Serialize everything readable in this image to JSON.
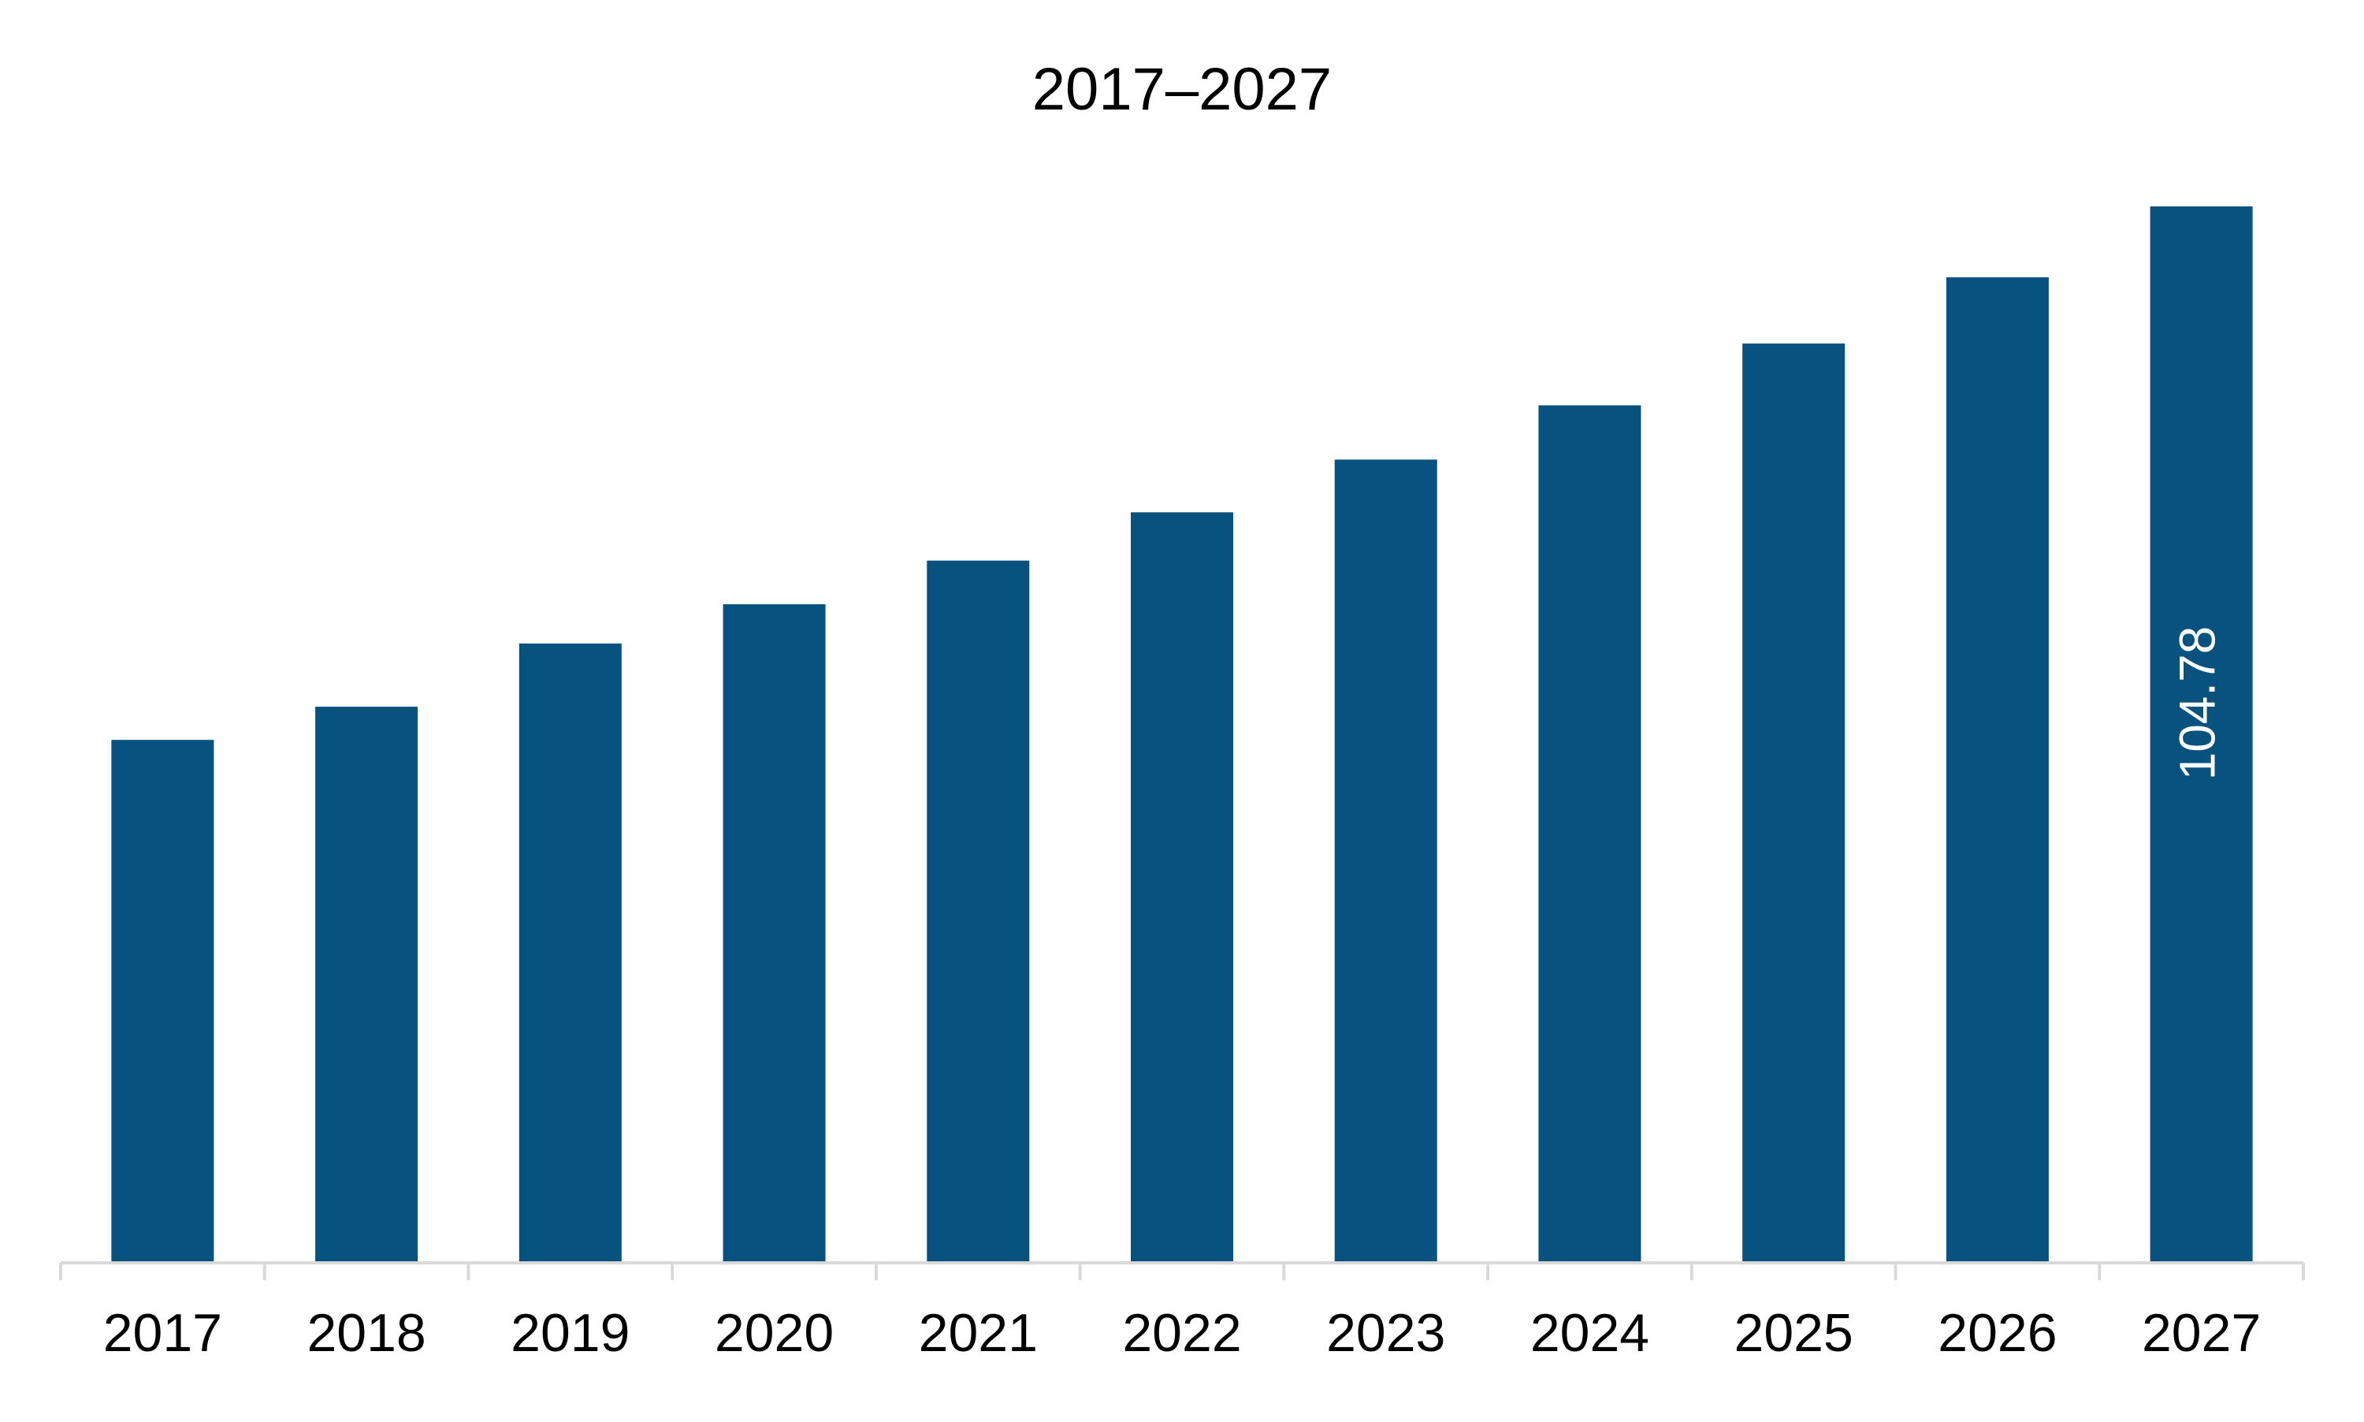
{
  "chart_data": {
    "type": "bar",
    "title": "2017–2027",
    "categories": [
      "2017",
      "2018",
      "2019",
      "2020",
      "2021",
      "2022",
      "2023",
      "2024",
      "2025",
      "2026",
      "2027"
    ],
    "values": [
      51.87,
      55.16,
      61.43,
      65.32,
      69.65,
      74.44,
      79.67,
      85.05,
      91.18,
      97.75,
      104.78
    ],
    "value_labels": [
      null,
      null,
      null,
      null,
      null,
      null,
      null,
      null,
      null,
      null,
      "104.78"
    ],
    "color": "#08527f"
  }
}
